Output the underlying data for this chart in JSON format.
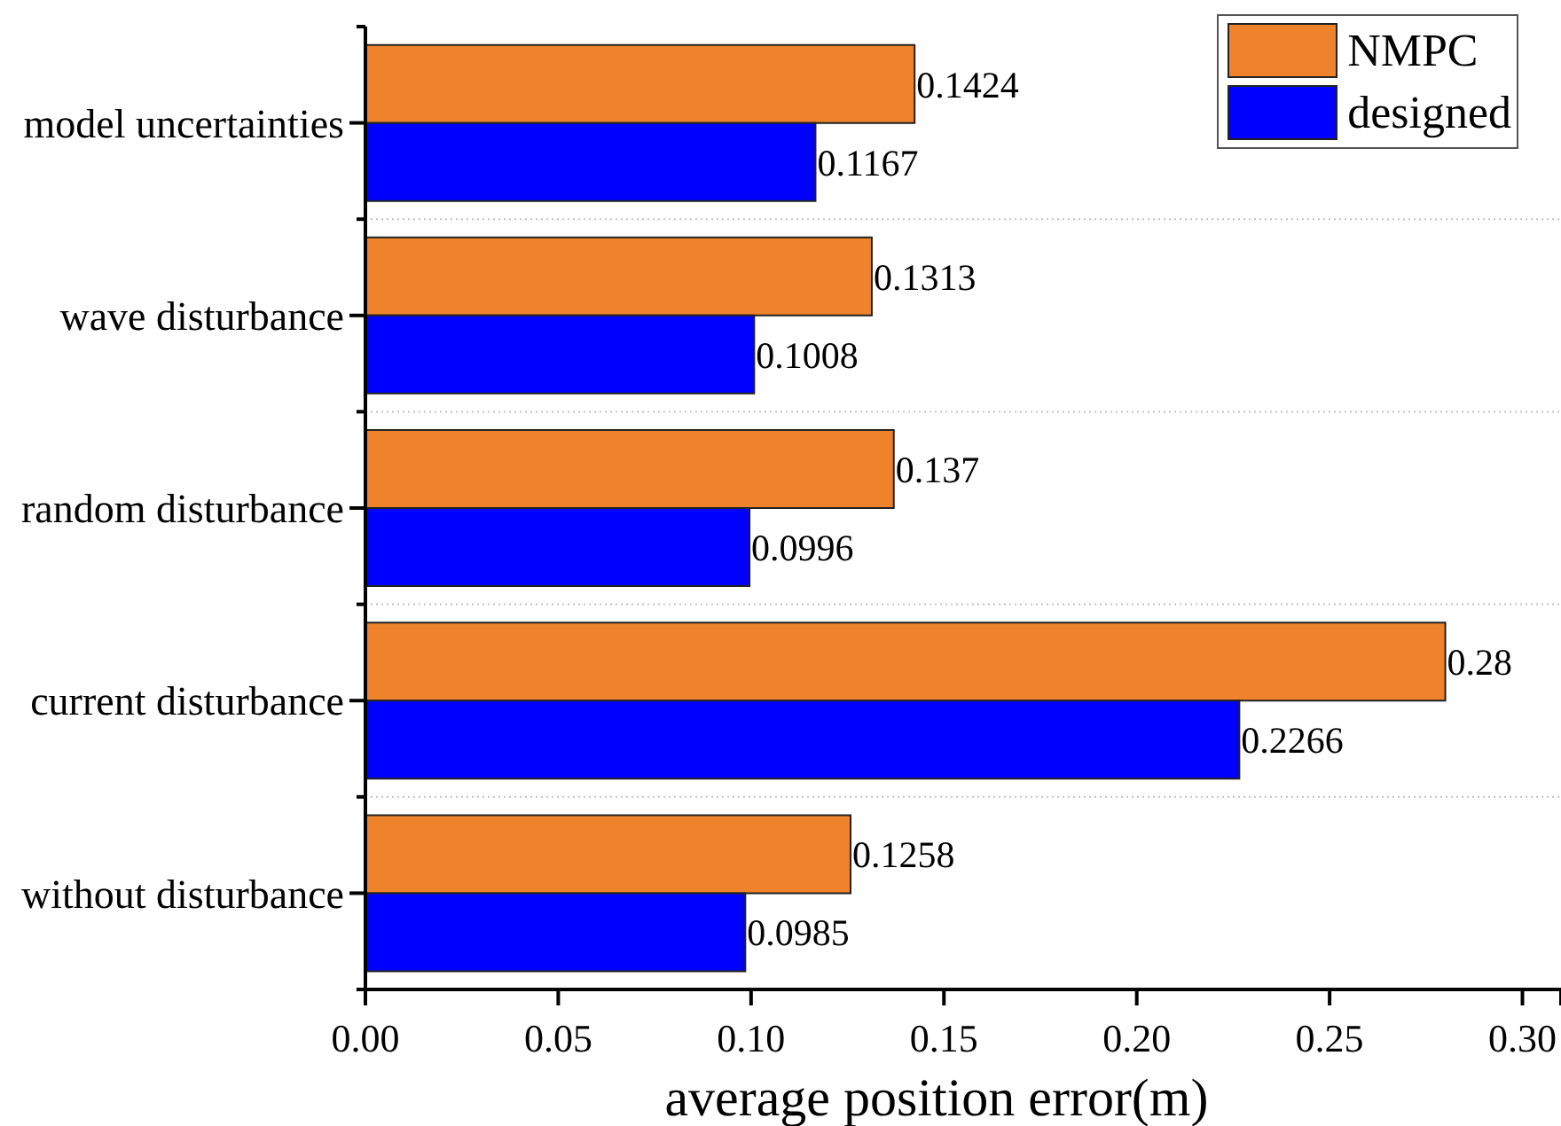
{
  "chart_data": {
    "type": "bar",
    "orientation": "horizontal",
    "xlabel": "average position error(m)",
    "categories": [
      "model uncertainties",
      "wave disturbance",
      "random disturbance",
      "current disturbance",
      "without disturbance"
    ],
    "series": [
      {
        "name": "NMPC",
        "color": "#ee832b",
        "values": [
          0.1424,
          0.1313,
          0.137,
          0.28,
          0.1258
        ]
      },
      {
        "name": "designed",
        "color": "#0000ff",
        "values": [
          0.1167,
          0.1008,
          0.0996,
          0.2266,
          0.0985
        ]
      }
    ],
    "xlim": [
      0,
      0.31
    ],
    "xticks": [
      {
        "value": 0,
        "label": "0.00"
      },
      0.05,
      {
        "value": 0.1,
        "label": "0.10"
      },
      0.15,
      {
        "value": 0.2,
        "label": "0.20"
      },
      0.25,
      {
        "value": 0.3,
        "label": "0.30"
      },
      {
        "value": 0.31,
        "label": null
      }
    ],
    "grid": "y",
    "legend": "top right",
    "data_labels": true
  }
}
